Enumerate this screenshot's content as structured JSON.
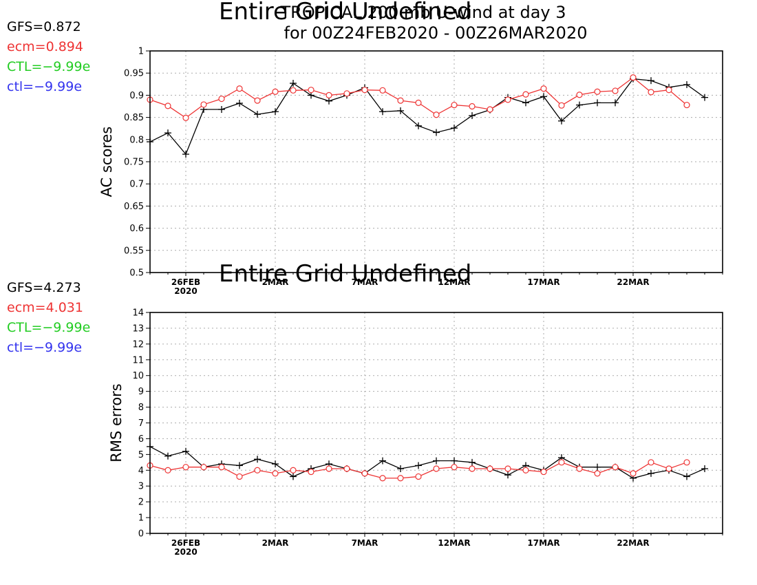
{
  "title_line1": "TROPICAL 200 mb U-wind at day 3",
  "title_line2": "for 00Z24FEB2020 - 00Z26MAR2020",
  "overlay_text": "Entire Grid Undefined",
  "colors": {
    "gfs": "#000000",
    "ecm": "#ee3333",
    "CTL": "#22cc22",
    "ctl": "#3333ee"
  },
  "chart_data": [
    {
      "type": "line",
      "ylabel": "AC scores",
      "ylim": [
        0.5,
        1
      ],
      "yticks": [
        "0.5",
        "0.55",
        "0.6",
        "0.65",
        "0.7",
        "0.75",
        "0.8",
        "0.85",
        "0.9",
        "0.95",
        "1"
      ],
      "xlim_days": "24FEB2020 to 26MAR2020",
      "xticks": [
        "26FEB",
        "2MAR",
        "7MAR",
        "12MAR",
        "17MAR",
        "22MAR"
      ],
      "xtick_year": "2020",
      "grid": true,
      "legend": [
        {
          "key": "gfs",
          "label": "GFS=0.872"
        },
        {
          "key": "ecm",
          "label": "ecm=0.894"
        },
        {
          "key": "CTL",
          "label": "CTL=-9.99e"
        },
        {
          "key": "ctl",
          "label": "ctl=-9.99e"
        }
      ],
      "series": [
        {
          "key": "gfs",
          "marker": "plus",
          "values": [
            0.795,
            0.815,
            0.767,
            0.868,
            0.868,
            0.882,
            0.857,
            0.863,
            0.927,
            0.9,
            0.887,
            0.9,
            0.917,
            0.863,
            0.865,
            0.831,
            0.816,
            0.826,
            0.854,
            0.867,
            0.895,
            0.883,
            0.897,
            0.842,
            0.878,
            0.883,
            0.883,
            0.937,
            0.933,
            0.918,
            0.924,
            0.895
          ]
        },
        {
          "key": "ecm",
          "marker": "circle",
          "values": [
            0.89,
            0.876,
            0.849,
            0.879,
            0.892,
            0.915,
            0.888,
            0.908,
            0.911,
            0.912,
            0.9,
            0.904,
            0.912,
            0.911,
            0.888,
            0.883,
            0.856,
            0.878,
            0.875,
            0.868,
            0.89,
            0.902,
            0.915,
            0.877,
            0.901,
            0.908,
            0.91,
            0.94,
            0.907,
            0.912,
            0.878,
            null
          ]
        }
      ]
    },
    {
      "type": "line",
      "ylabel": "RMS errors",
      "ylim": [
        0,
        14
      ],
      "yticks": [
        "0",
        "1",
        "2",
        "3",
        "4",
        "5",
        "6",
        "7",
        "8",
        "9",
        "10",
        "11",
        "12",
        "13",
        "14"
      ],
      "xlim_days": "24FEB2020 to 26MAR2020",
      "xticks": [
        "26FEB",
        "2MAR",
        "7MAR",
        "12MAR",
        "17MAR",
        "22MAR"
      ],
      "xtick_year": "2020",
      "grid": true,
      "legend": [
        {
          "key": "gfs",
          "label": "GFS=4.273"
        },
        {
          "key": "ecm",
          "label": "ecm=4.031"
        },
        {
          "key": "CTL",
          "label": "CTL=-9.99e"
        },
        {
          "key": "ctl",
          "label": "ctl=-9.99e"
        }
      ],
      "series": [
        {
          "key": "gfs",
          "marker": "plus",
          "values": [
            5.5,
            4.9,
            5.2,
            4.2,
            4.4,
            4.3,
            4.7,
            4.4,
            3.6,
            4.1,
            4.4,
            4.1,
            3.8,
            4.6,
            4.1,
            4.3,
            4.6,
            4.6,
            4.5,
            4.1,
            3.7,
            4.3,
            4.0,
            4.8,
            4.2,
            4.2,
            4.2,
            3.5,
            3.8,
            4.0,
            3.6,
            4.1
          ]
        },
        {
          "key": "ecm",
          "marker": "circle",
          "values": [
            4.3,
            4.0,
            4.2,
            4.2,
            4.2,
            3.6,
            4.0,
            3.8,
            4.0,
            3.9,
            4.1,
            4.1,
            3.8,
            3.5,
            3.5,
            3.6,
            4.1,
            4.2,
            4.1,
            4.1,
            4.1,
            4.0,
            3.9,
            4.5,
            4.1,
            3.8,
            4.2,
            3.8,
            4.5,
            4.1,
            4.5,
            null
          ]
        }
      ]
    }
  ]
}
